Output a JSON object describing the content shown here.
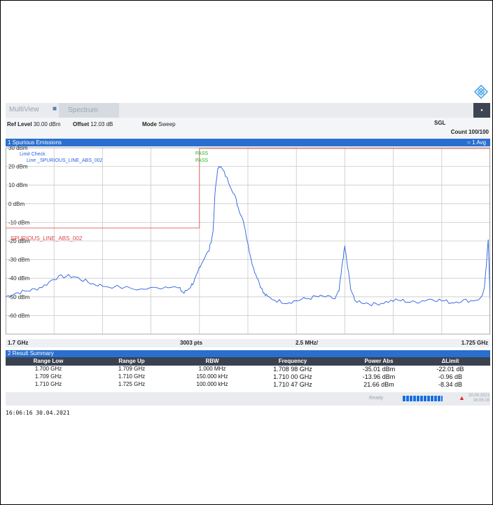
{
  "tabs": {
    "multiview": "MultiView",
    "multiview_close": "■",
    "spectrum": "Spectrum",
    "menu": "▪"
  },
  "settings": {
    "ref_level_label": "Ref Level",
    "ref_level": "30.00 dBm",
    "offset_label": "Offset",
    "offset": "12.03 dB",
    "mode_label": "Mode",
    "mode": "Sweep",
    "sgl": "SGL",
    "count": "Count 100/100"
  },
  "window": {
    "title": "1 Spurious Emissions",
    "trace": "1 Avg",
    "trace_dot": "○"
  },
  "plot_texts": {
    "limit_check": "Limit Check",
    "limit_line_label": "Line _SPURIOUS_LINE_ABS_002",
    "pass1": "PASS",
    "pass2": "PASS",
    "limit_line_name": "SPURIOUS_LINE_ABS_002"
  },
  "chart_data": {
    "type": "line",
    "xlabel": "",
    "ylabel": "",
    "x_start": "1.7 GHz",
    "x_stop": "1.725 GHz",
    "points": "3003 pts",
    "div": "2.5 MHz/",
    "xlim": [
      1.7,
      1.725
    ],
    "ylim": [
      -70,
      30
    ],
    "y_ticks": [
      "30 dBm",
      "20 dBm",
      "10 dBm",
      "0 dBm",
      "-10 dBm",
      "-20 dBm",
      "-30 dBm",
      "-40 dBm",
      "-50 dBm",
      "-60 dBm"
    ],
    "grid": true,
    "limit_line": {
      "name": "SPURIOUS_LINE_ABS_002",
      "segments": [
        {
          "x": [
            1.7,
            1.71
          ],
          "y": -13
        },
        {
          "x": [
            1.71,
            1.725
          ],
          "y": 30
        }
      ]
    },
    "series": [
      {
        "color": "#2a5fe0",
        "x": [
          1.7,
          1.7005,
          1.701,
          1.7015,
          1.702,
          1.7025,
          1.703,
          1.7035,
          1.704,
          1.7045,
          1.705,
          1.706,
          1.707,
          1.708,
          1.7085,
          1.709,
          1.7092,
          1.7095,
          1.7097,
          1.7099,
          1.71,
          1.7102,
          1.7105,
          1.7107,
          1.7108,
          1.7109,
          1.711,
          1.7112,
          1.7115,
          1.7118,
          1.712,
          1.7123,
          1.7125,
          1.7128,
          1.713,
          1.7133,
          1.7135,
          1.714,
          1.7145,
          1.715,
          1.7155,
          1.716,
          1.7165,
          1.717,
          1.7172,
          1.7174,
          1.7175,
          1.7176,
          1.7178,
          1.718,
          1.7185,
          1.719,
          1.7195,
          1.72,
          1.7205,
          1.721,
          1.7215,
          1.722,
          1.7225,
          1.723,
          1.7235,
          1.724,
          1.7245,
          1.7247,
          1.7249,
          1.725
        ],
        "y": [
          -50,
          -48,
          -47,
          -46,
          -44,
          -40,
          -39,
          -39,
          -41,
          -43,
          -44,
          -45,
          -46,
          -45,
          -44,
          -46,
          -48,
          -45,
          -42,
          -38,
          -34,
          -30,
          -25,
          -15,
          5,
          15,
          21,
          18,
          12,
          5,
          -2,
          -10,
          -22,
          -35,
          -40,
          -48,
          -50,
          -52,
          -53,
          -52,
          -51,
          -50,
          -50,
          -51,
          -47,
          -30,
          -23,
          -31,
          -45,
          -52,
          -53,
          -54,
          -53,
          -52,
          -52,
          -53,
          -52,
          -51,
          -52,
          -53,
          -52,
          -52,
          -51,
          -46,
          -20,
          -51
        ]
      }
    ]
  },
  "results": {
    "title": "2 Result Summary",
    "headers": [
      "Range Low",
      "Range Up",
      "RBW",
      "Frequency",
      "Power Abs",
      "ΔLimit"
    ],
    "rows": [
      [
        "1.700 GHz",
        "1.709 GHz",
        "1.000 MHz",
        "1.708 98 GHz",
        "-35.01 dBm",
        "-22.01 dB"
      ],
      [
        "1.709 GHz",
        "1.710 GHz",
        "150.000 kHz",
        "1.710 00 GHz",
        "-13.96 dBm",
        "-0.96 dB"
      ],
      [
        "1.710 GHz",
        "1.725 GHz",
        "100.000 kHz",
        "1.710 47 GHz",
        "21.66 dBm",
        "-8.34 dB"
      ]
    ]
  },
  "status": {
    "ready": "Ready",
    "progress": 1.0,
    "date": "30.04.2021",
    "time": "16:06:16"
  },
  "timestamp": "16:06:16  30.04.2021"
}
